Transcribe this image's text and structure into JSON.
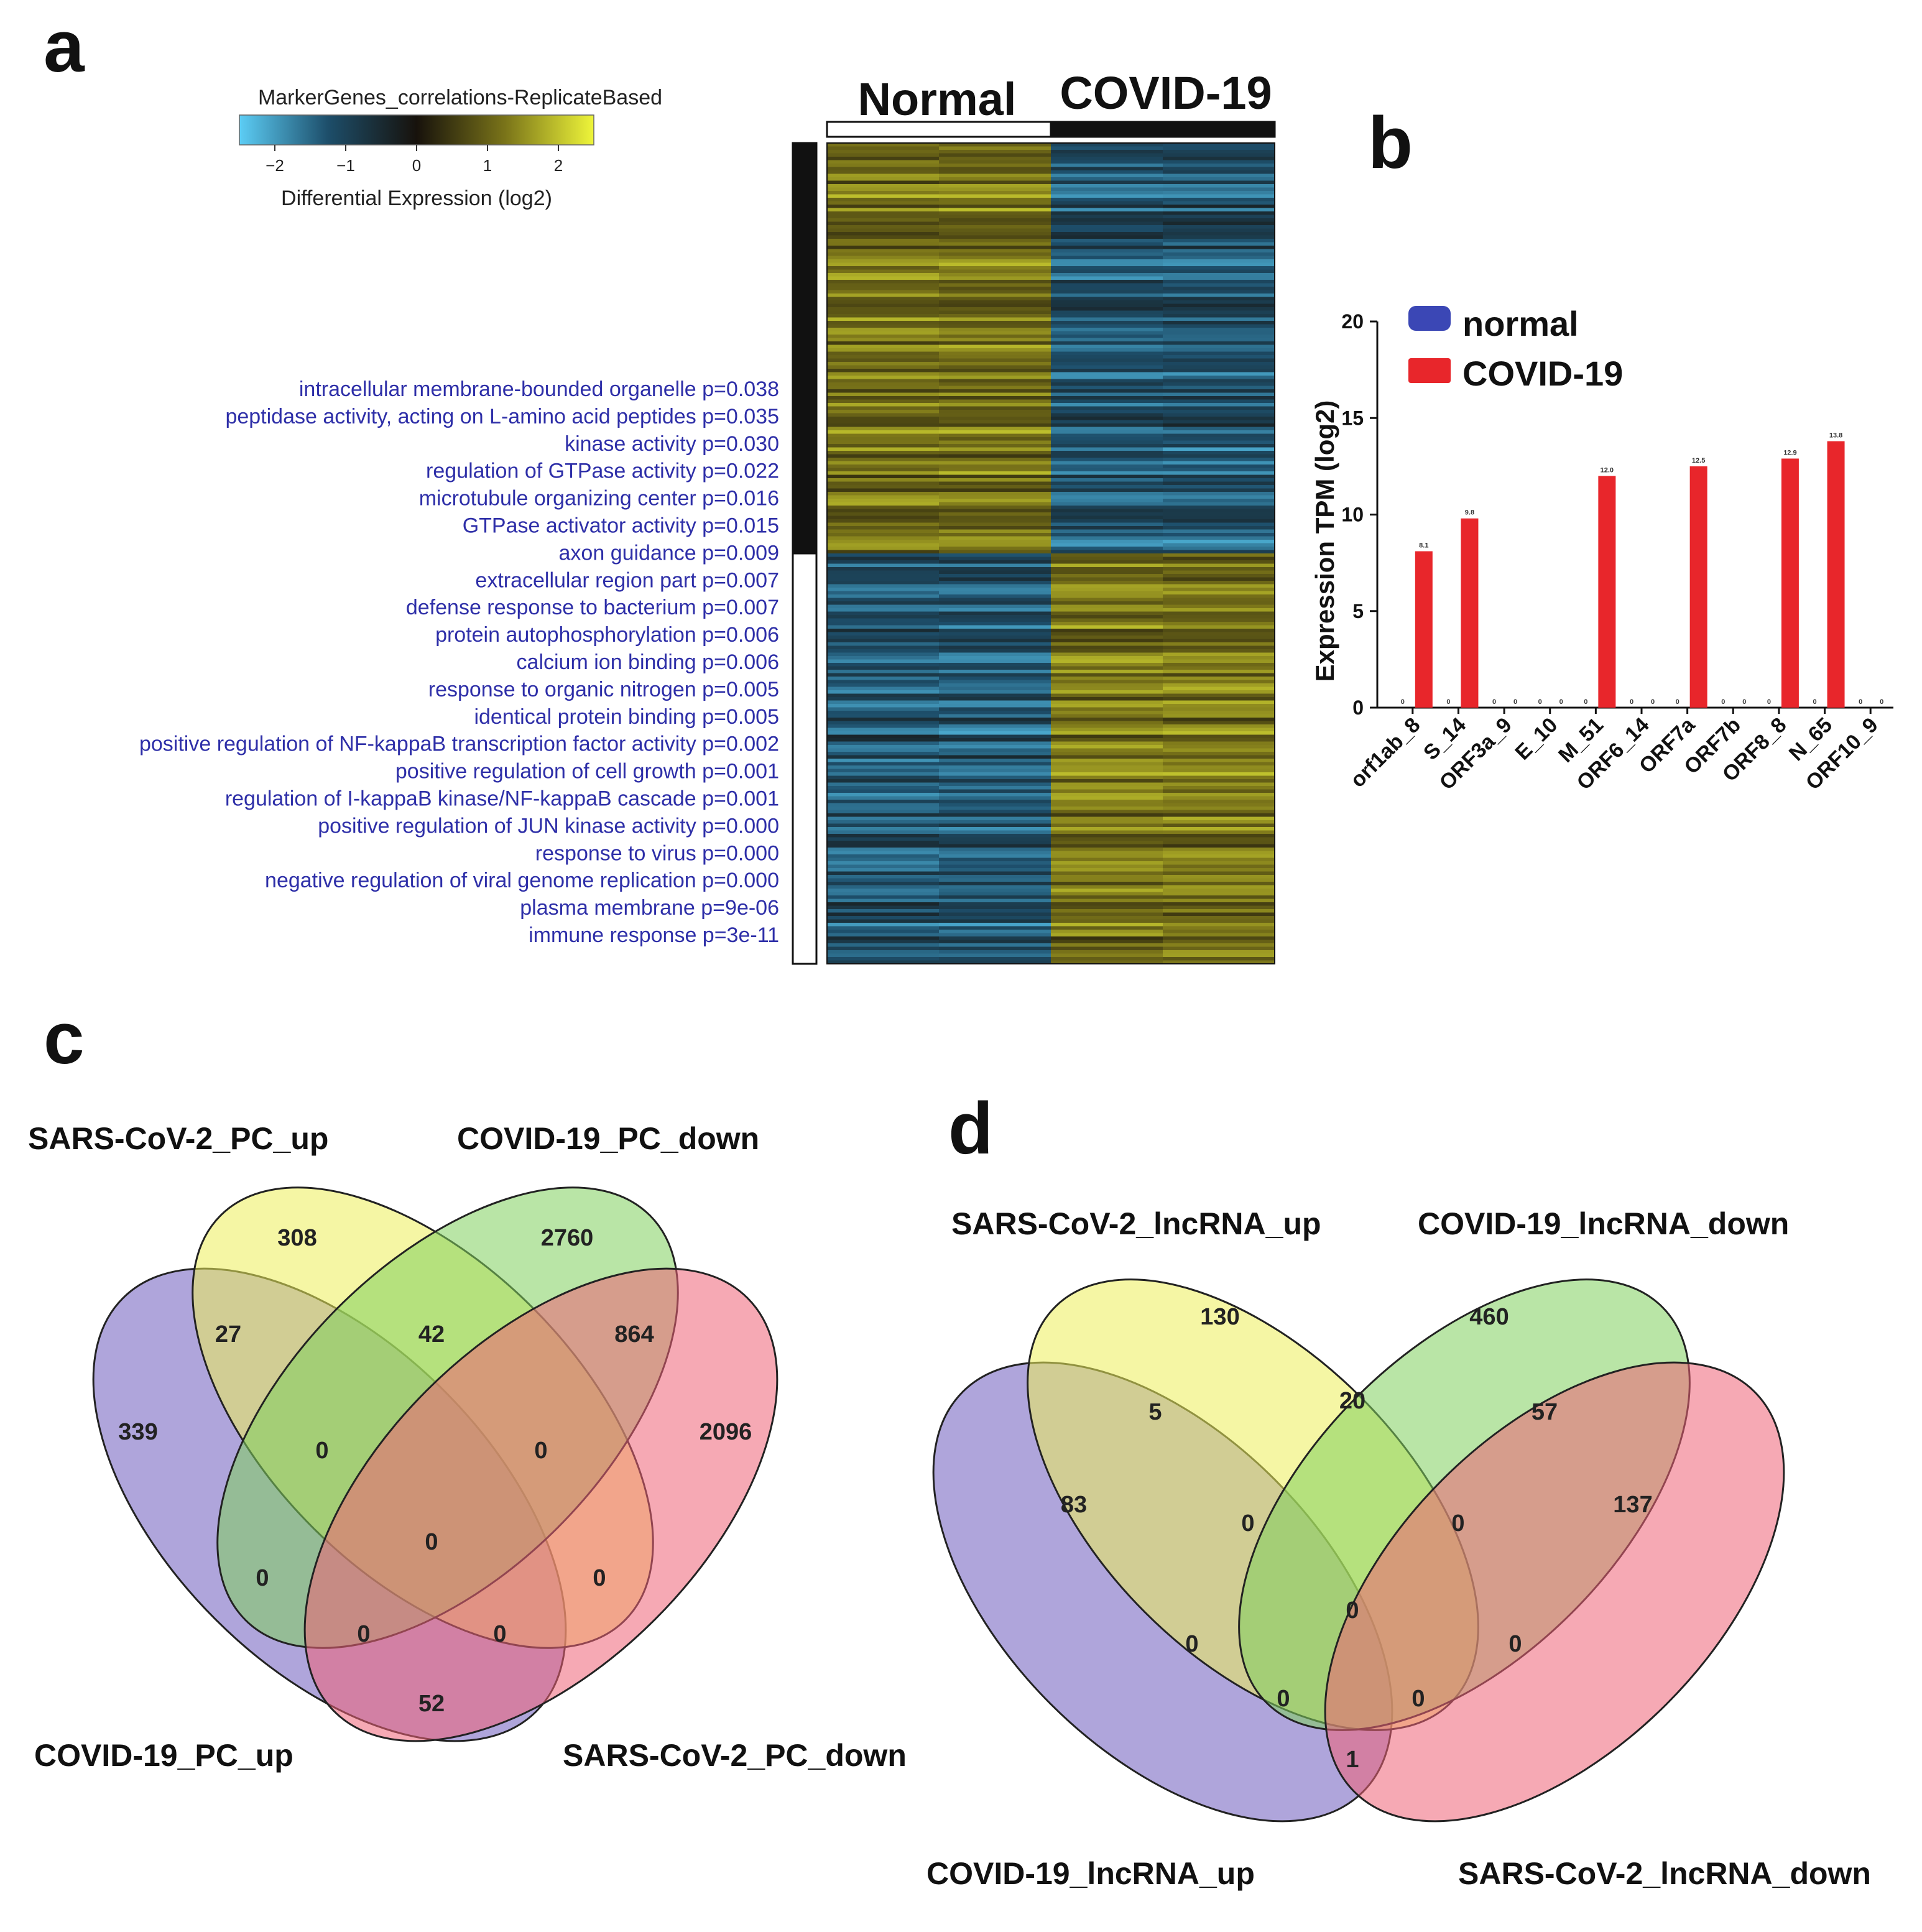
{
  "panels": [
    "a",
    "b",
    "c",
    "d"
  ],
  "colors": {
    "go_text": "#2e2fa8",
    "normal": "#3b47b5",
    "covid": "#e8262b",
    "venn_purple": "#6e5bbd",
    "venn_yellow": "#ecef5a",
    "venn_green": "#7fd05c",
    "venn_pink": "#ee6276"
  },
  "chart_data": [
    {
      "type": "heatmap",
      "panel": "a",
      "colorbar": {
        "title": "MarkerGenes_correlations-ReplicateBased",
        "label": "Differential Expression (log2)",
        "ticks": [
          "−2",
          "−1",
          "0",
          "1",
          "2"
        ],
        "range": [
          -2.5,
          2.5
        ],
        "colors": [
          "#5ccdf5",
          "#1d4e6a",
          "#17120c",
          "#7a7419",
          "#eef53a"
        ]
      },
      "columns": [
        "Normal",
        "COVID-19"
      ],
      "clusters": [
        {
          "name": "up_in_normal",
          "rows": 120,
          "normal": "high",
          "covid": "low"
        },
        {
          "name": "up_in_covid",
          "rows": 120,
          "normal": "low",
          "covid": "high"
        }
      ],
      "go_terms": [
        "intracellular membrane-bounded organelle p=0.038",
        "peptidase activity, acting on L-amino acid peptides p=0.035",
        "kinase activity p=0.030",
        "regulation of GTPase activity p=0.022",
        "microtubule organizing center p=0.016",
        "GTPase activator activity p=0.015",
        "axon guidance p=0.009",
        "extracellular region part p=0.007",
        "defense response to bacterium p=0.007",
        "protein autophosphorylation p=0.006",
        "calcium ion binding p=0.006",
        "response to organic nitrogen p=0.005",
        "identical protein binding p=0.005",
        "positive regulation of NF-kappaB transcription factor activity p=0.002",
        "positive regulation of cell growth p=0.001",
        "regulation of I-kappaB kinase/NF-kappaB cascade p=0.001",
        "positive regulation of JUN kinase activity p=0.000",
        "response to virus p=0.000",
        "negative regulation of viral genome replication p=0.000",
        "plasma membrane p=9e-06",
        "immune response p=3e-11"
      ]
    },
    {
      "type": "bar",
      "panel": "b",
      "ylabel": "Expression TPM (log2)",
      "ylim": [
        0,
        20
      ],
      "yticks": [
        "0",
        "5",
        "10",
        "15",
        "20"
      ],
      "categories": [
        "orf1ab_8",
        "S_14",
        "ORF3a_9",
        "E_10",
        "M_51",
        "ORF6_14",
        "ORF7a",
        "ORF7b",
        "ORF8_8",
        "N_65",
        "ORF10_9"
      ],
      "series": [
        {
          "name": "normal",
          "values": [
            0,
            0,
            0,
            0,
            0,
            0,
            0,
            0,
            0,
            0,
            0
          ],
          "labels": [
            "0",
            "0",
            "0",
            "0",
            "0",
            "0",
            "0",
            "0",
            "0",
            "0",
            "0"
          ]
        },
        {
          "name": "COVID-19",
          "values": [
            8.1,
            9.8,
            0,
            0,
            12.0,
            0,
            12.5,
            0,
            12.9,
            13.8,
            0
          ],
          "labels": [
            "8.1",
            "9.8",
            "0",
            "0",
            "12.0",
            "0",
            "12.5",
            "0",
            "12.9",
            "13.8",
            "0"
          ]
        }
      ],
      "legend": [
        "normal",
        "COVID-19"
      ]
    },
    {
      "type": "venn",
      "panel": "c",
      "sets": [
        "SARS-CoV-2_PC_up",
        "COVID-19_PC_down",
        "COVID-19_PC_up",
        "SARS-CoV-2_PC_down"
      ],
      "regions": {
        "A_only": "339",
        "B_only": "308",
        "C_only": "2760",
        "D_only": "2096",
        "AB": "27",
        "BC": "42",
        "CD": "864",
        "AC": "0",
        "BD": "0",
        "ABC": "0",
        "BCD": "0",
        "ABCD": "0",
        "ACD": "0",
        "ABD": "0",
        "AD": "52"
      }
    },
    {
      "type": "venn",
      "panel": "d",
      "sets": [
        "SARS-CoV-2_lncRNA_up",
        "COVID-19_lncRNA_down",
        "COVID-19_lncRNA_up",
        "SARS-CoV-2_lncRNA_down"
      ],
      "regions": {
        "A_only": "83",
        "B_only": "130",
        "C_only": "460",
        "D_only": "137",
        "AB": "5",
        "BC": "20",
        "CD": "57",
        "AC": "0",
        "BD": "0",
        "ABC": "0",
        "BCD": "0",
        "ABCD": "0",
        "ACD": "0",
        "ABD": "0",
        "AD": "1"
      }
    }
  ]
}
